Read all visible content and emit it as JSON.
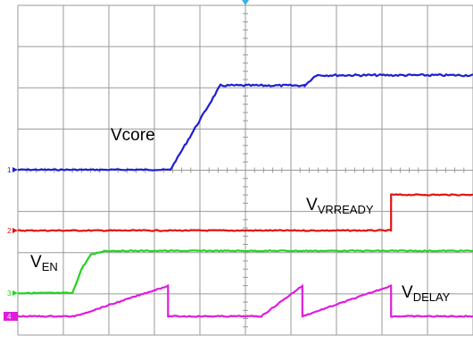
{
  "chart_data": {
    "type": "line",
    "title": "",
    "xlabel": "",
    "ylabel": "",
    "grid": true,
    "xlim": [
      0,
      10
    ],
    "divisions": {
      "x": 10,
      "y": 8
    },
    "colors": {
      "vcore": "#1f1fd0",
      "vvrready": "#e01414",
      "ven": "#22d41e",
      "vdelay": "#de1edb",
      "grid": "#9a9a9a",
      "trigger": "#3ab0e6"
    },
    "series": [
      {
        "name": "Vcore",
        "name_sub": "",
        "channel": "1",
        "x": [
          0,
          3.35,
          4.45,
          6.3,
          6.55,
          10
        ],
        "y": [
          0,
          0,
          2.05,
          2.05,
          2.3,
          2.3
        ]
      },
      {
        "name": "V",
        "name_sub": "VRREADY",
        "channel": "2",
        "x": [
          0,
          8.2,
          8.2,
          10
        ],
        "y": [
          0,
          0,
          1,
          1
        ]
      },
      {
        "name": "V",
        "name_sub": "EN",
        "channel": "3",
        "x": [
          0,
          1.2,
          1.4,
          1.6,
          1.9,
          2.3,
          10
        ],
        "y": [
          0,
          0,
          0.6,
          0.95,
          1.05,
          1.05,
          1.05
        ]
      },
      {
        "name": "V",
        "name_sub": "DELAY",
        "channel": "4",
        "x": [
          0,
          1.25,
          3.3,
          3.3,
          5.35,
          6.25,
          6.25,
          8.2,
          8.2,
          10
        ],
        "y": [
          0,
          0,
          0.9,
          0,
          0,
          0.9,
          0,
          0.9,
          0,
          0
        ]
      }
    ],
    "channel_markers": [
      "1",
      "2",
      "3",
      "4"
    ]
  }
}
